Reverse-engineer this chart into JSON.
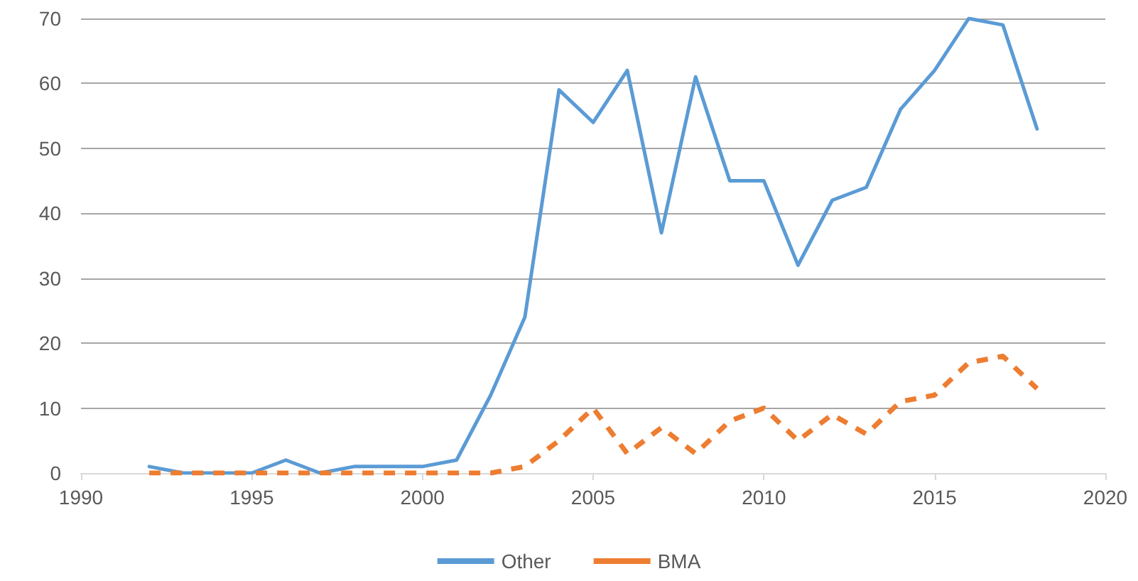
{
  "chart_data": {
    "type": "line",
    "x": [
      1992,
      1993,
      1994,
      1995,
      1996,
      1997,
      1998,
      1999,
      2000,
      2001,
      2002,
      2003,
      2004,
      2005,
      2006,
      2007,
      2008,
      2009,
      2010,
      2011,
      2012,
      2013,
      2014,
      2015,
      2016,
      2017,
      2018
    ],
    "series": [
      {
        "name": "Other",
        "color": "#5b9bd5",
        "line_style": "solid",
        "values": [
          1,
          0,
          0,
          0,
          2,
          0,
          1,
          1,
          1,
          2,
          12,
          24,
          59,
          54,
          62,
          37,
          61,
          45,
          45,
          32,
          42,
          44,
          56,
          62,
          70,
          69,
          53
        ]
      },
      {
        "name": "BMA",
        "color": "#ed7d31",
        "line_style": "dashed",
        "values": [
          0,
          0,
          0,
          0,
          0,
          0,
          0,
          0,
          0,
          0,
          0,
          1,
          5,
          10,
          3,
          7,
          3,
          8,
          10,
          5,
          9,
          6,
          11,
          12,
          17,
          18,
          13
        ]
      }
    ],
    "xlim": [
      1990,
      2020
    ],
    "xticks": [
      1990,
      1995,
      2000,
      2005,
      2010,
      2015,
      2020
    ],
    "ylim": [
      0,
      70
    ],
    "yticks": [
      0,
      10,
      20,
      30,
      40,
      50,
      60,
      70
    ],
    "grid": "y",
    "legend": "bottom",
    "marker": "none"
  }
}
